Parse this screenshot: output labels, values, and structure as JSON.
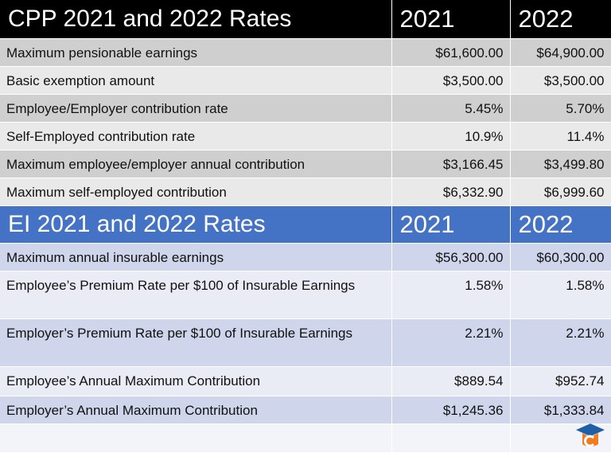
{
  "sections": [
    {
      "title": "CPP 2021 and 2022 Rates",
      "columns": [
        "2021",
        "2022"
      ],
      "rows": [
        [
          "Maximum pensionable earnings",
          "$61,600.00",
          "$64,900.00"
        ],
        [
          "Basic exemption amount",
          "$3,500.00",
          "$3,500.00"
        ],
        [
          "Employee/Employer contribution rate",
          "5.45%",
          "5.70%"
        ],
        [
          "Self-Employed contribution rate",
          "10.9%",
          "11.4%"
        ],
        [
          "Maximum employee/employer annual contribution",
          "$3,166.45",
          "$3,499.80"
        ],
        [
          "Maximum self-employed contribution",
          "$6,332.90",
          "$6,999.60"
        ]
      ]
    },
    {
      "title": "EI 2021 and 2022 Rates",
      "columns": [
        "2021",
        "2022"
      ],
      "rows": [
        [
          "Maximum annual insurable earnings",
          "$56,300.00",
          "$60,300.00"
        ],
        [
          "Employee’s Premium Rate per $100 of Insurable Earnings",
          "1.58%",
          "1.58%"
        ],
        [
          "Employer’s Premium Rate per $100 of Insurable Earnings",
          "2.21%",
          "2.21%"
        ],
        [
          "Employee’s Annual Maximum Contribution",
          "$889.54",
          "$952.74"
        ],
        [
          "Employer’s Annual Maximum Contribution",
          "$1,245.36",
          "$1,333.84"
        ]
      ]
    }
  ]
}
